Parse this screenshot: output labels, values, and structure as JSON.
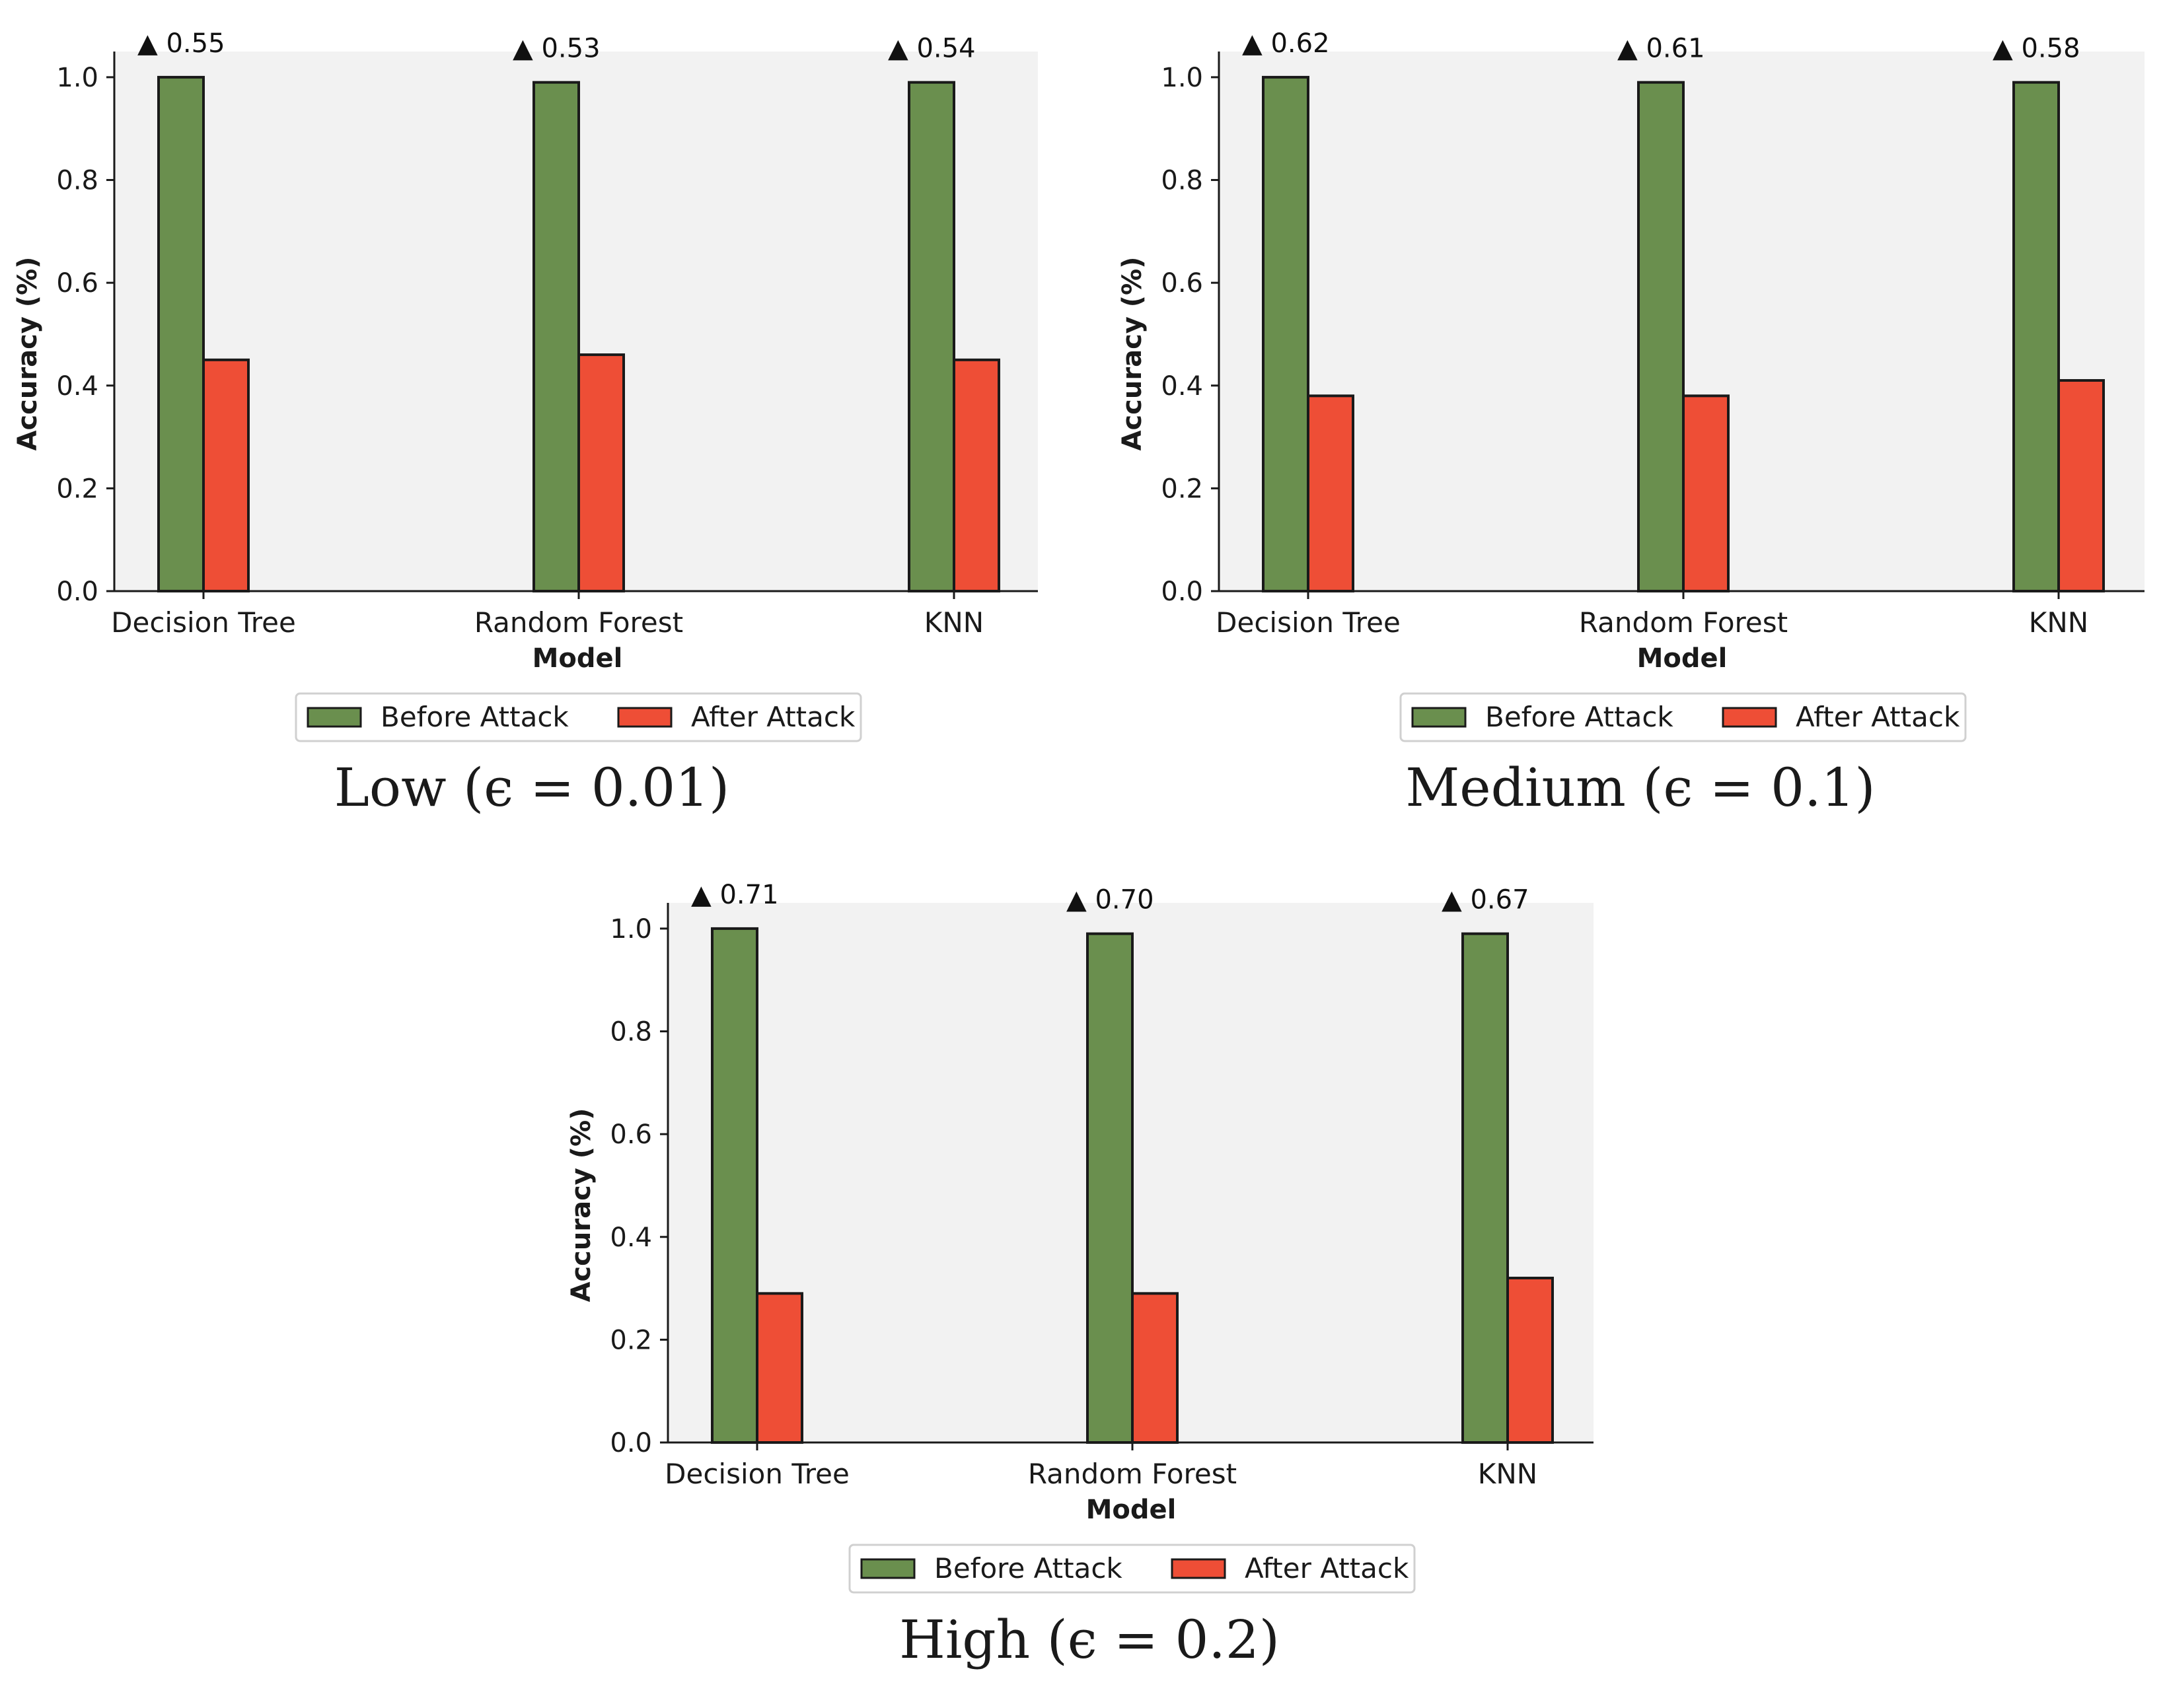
{
  "colors": {
    "before": "#6a8f4e",
    "after": "#ee4e36",
    "plot_bg": "#f2f2f2",
    "edge": "#1a1a1a"
  },
  "chart_data": [
    {
      "type": "bar",
      "caption": "Low (ϵ = 0.01)",
      "categories": [
        "Decision Tree",
        "Random Forest",
        "KNN"
      ],
      "series": [
        {
          "name": "Before Attack",
          "values": [
            1.0,
            0.99,
            0.99
          ]
        },
        {
          "name": "After Attack",
          "values": [
            0.45,
            0.46,
            0.45
          ]
        }
      ],
      "annotations": [
        "▲ 0.55",
        "▲ 0.53",
        "▲ 0.54"
      ],
      "xlabel": "Model",
      "ylabel": "Accuracy (%)",
      "ylim": [
        0,
        1.05
      ],
      "yticks": [
        "0.0",
        "0.2",
        "0.4",
        "0.6",
        "0.8",
        "1.0"
      ],
      "legend": "bottom-center"
    },
    {
      "type": "bar",
      "caption": "Medium (ϵ = 0.1)",
      "categories": [
        "Decision Tree",
        "Random Forest",
        "KNN"
      ],
      "series": [
        {
          "name": "Before Attack",
          "values": [
            1.0,
            0.99,
            0.99
          ]
        },
        {
          "name": "After Attack",
          "values": [
            0.38,
            0.38,
            0.41
          ]
        }
      ],
      "annotations": [
        "▲ 0.62",
        "▲ 0.61",
        "▲ 0.58"
      ],
      "xlabel": "Model",
      "ylabel": "Accuracy (%)",
      "ylim": [
        0,
        1.05
      ],
      "yticks": [
        "0.0",
        "0.2",
        "0.4",
        "0.6",
        "0.8",
        "1.0"
      ],
      "legend": "bottom-center"
    },
    {
      "type": "bar",
      "caption": "High (ϵ = 0.2)",
      "categories": [
        "Decision Tree",
        "Random Forest",
        "KNN"
      ],
      "series": [
        {
          "name": "Before Attack",
          "values": [
            1.0,
            0.99,
            0.99
          ]
        },
        {
          "name": "After Attack",
          "values": [
            0.29,
            0.29,
            0.32
          ]
        }
      ],
      "annotations": [
        "▲ 0.71",
        "▲ 0.70",
        "▲ 0.67"
      ],
      "xlabel": "Model",
      "ylabel": "Accuracy (%)",
      "ylim": [
        0,
        1.05
      ],
      "yticks": [
        "0.0",
        "0.2",
        "0.4",
        "0.6",
        "0.8",
        "1.0"
      ],
      "legend": "bottom-center"
    }
  ]
}
